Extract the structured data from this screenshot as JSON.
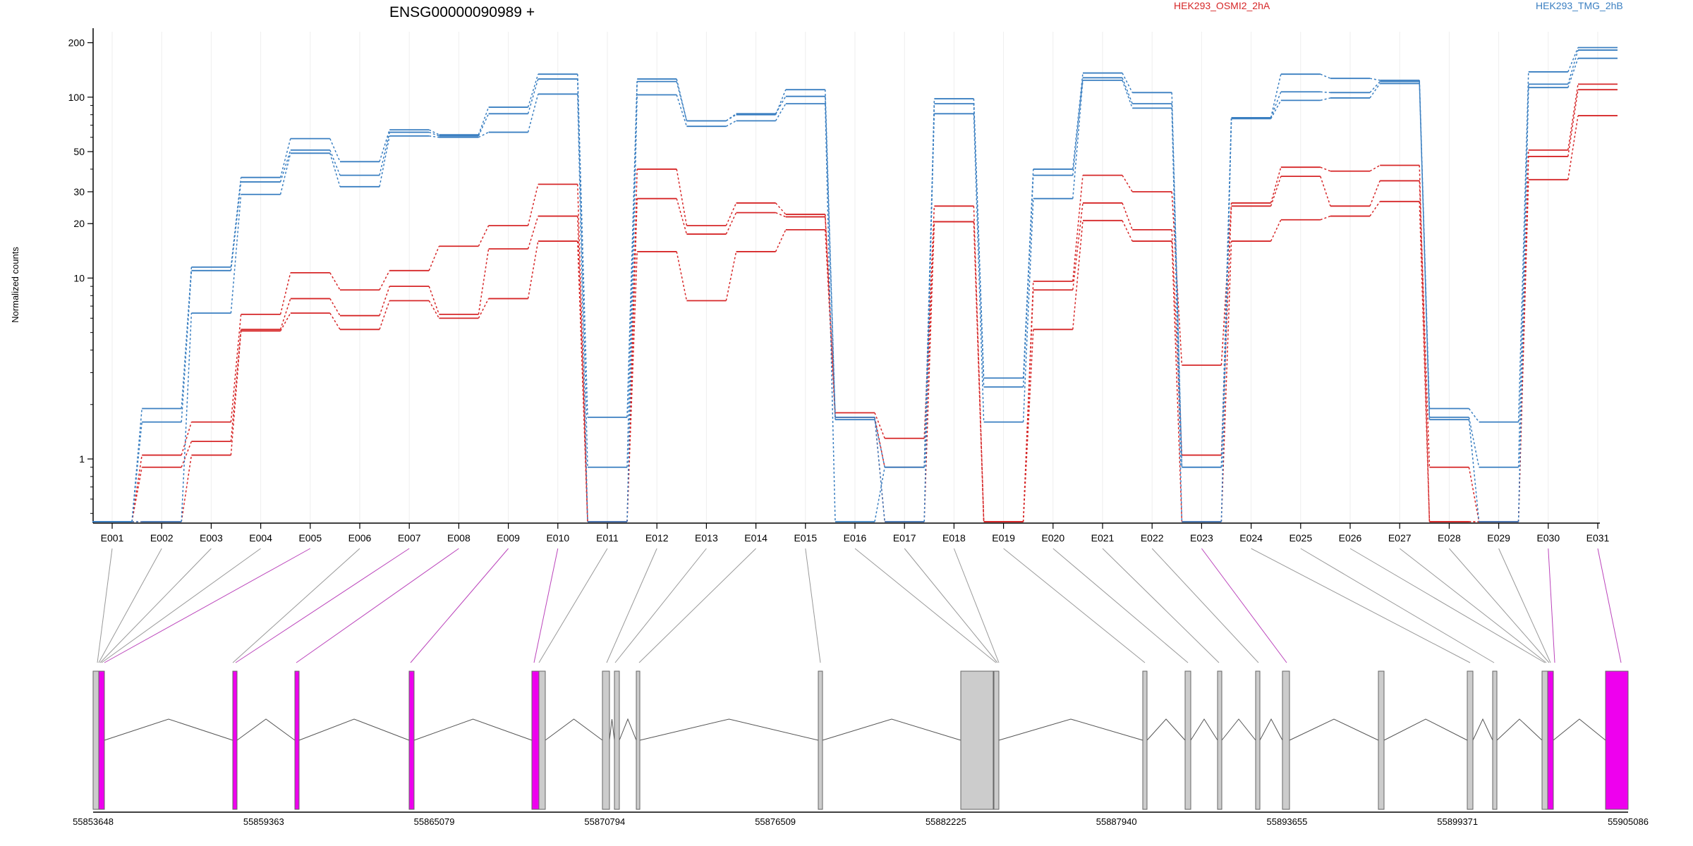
{
  "chart_data": {
    "type": "line",
    "title": "ENSG00000090989 +",
    "ylabel": "Normalized counts",
    "y_scale": "log",
    "ylim": [
      0.45,
      230
    ],
    "y_ticks": [
      1,
      10,
      20,
      30,
      50,
      100,
      200
    ],
    "y_tick_labels": [
      "1",
      "10",
      "20",
      "30",
      "50",
      "100",
      "200"
    ],
    "categories": [
      "E001",
      "E002",
      "E003",
      "E004",
      "E005",
      "E006",
      "E007",
      "E008",
      "E009",
      "E010",
      "E011",
      "E012",
      "E013",
      "E014",
      "E015",
      "E016",
      "E017",
      "E018",
      "E019",
      "E020",
      "E021",
      "E022",
      "E023",
      "E024",
      "E025",
      "E026",
      "E027",
      "E028",
      "E029",
      "E030",
      "E031"
    ],
    "colors": {
      "HEK293_OSMI2_2hA": "#d62728",
      "HEK293_TMG_2hB": "#3a7fc1",
      "exon_default": "#cccccc",
      "exon_highlight": "#ee00ee",
      "connector_default": "#999999",
      "connector_highlight": "#bb44bb"
    },
    "legend": [
      {
        "name": "HEK293_OSMI2_2hA",
        "color": "#d62728"
      },
      {
        "name": "HEK293_TMG_2hB",
        "color": "#3a7fc1"
      }
    ],
    "series": [
      {
        "group": "HEK293_OSMI2_2hA",
        "values": [
          0.45,
          1.05,
          1.6,
          6.3,
          10.7,
          8.6,
          11,
          15,
          19.5,
          33,
          0.45,
          40,
          19.5,
          26,
          22.5,
          1.8,
          1.3,
          25,
          0.45,
          9.6,
          37,
          30,
          3.3,
          26,
          41,
          39,
          42,
          0.45,
          0.45,
          51,
          118
        ]
      },
      {
        "group": "HEK293_OSMI2_2hA",
        "values": [
          0.45,
          0.9,
          1.25,
          5.2,
          7.7,
          6.2,
          9,
          6.3,
          14.5,
          22,
          0.45,
          27.5,
          17.5,
          23,
          21.8,
          1.7,
          0.9,
          20.5,
          0.45,
          8.6,
          26,
          18.5,
          1.05,
          25,
          36.5,
          25,
          34.5,
          0.9,
          0.45,
          47,
          110
        ]
      },
      {
        "group": "HEK293_OSMI2_2hA",
        "values": [
          0.45,
          0.45,
          1.05,
          5.1,
          6.4,
          5.2,
          7.5,
          6.0,
          7.7,
          16,
          0.45,
          14,
          7.5,
          14,
          18.5,
          1.7,
          0.45,
          20.5,
          0.45,
          5.2,
          20.8,
          16,
          0.45,
          16,
          21,
          22,
          26.5,
          0.45,
          0.45,
          35,
          79
        ]
      },
      {
        "group": "HEK293_TMG_2hB",
        "values": [
          0.45,
          1.9,
          11.5,
          36,
          59,
          44,
          66,
          62,
          88,
          134,
          1.7,
          126,
          74,
          80,
          110,
          1.7,
          0.45,
          98,
          2.8,
          40,
          136,
          106,
          0.9,
          77,
          134,
          127,
          124,
          1.9,
          1.6,
          138,
          188
        ]
      },
      {
        "group": "HEK293_TMG_2hB",
        "values": [
          0.45,
          1.6,
          11,
          34,
          51,
          37,
          64,
          61,
          81,
          126,
          0.9,
          122,
          74,
          81,
          101,
          1.65,
          0.9,
          92,
          2.5,
          37,
          128,
          92,
          0.9,
          77,
          107,
          106,
          122,
          1.7,
          0.9,
          118,
          182
        ]
      },
      {
        "group": "HEK293_TMG_2hB",
        "values": [
          0.45,
          0.45,
          6.4,
          29,
          49,
          32,
          61,
          60,
          64,
          104,
          0.45,
          103,
          69,
          74,
          92,
          0.45,
          0.9,
          81,
          1.6,
          27.5,
          124,
          87,
          0.45,
          76,
          96,
          99,
          119,
          1.65,
          0.45,
          113,
          164
        ]
      }
    ],
    "gene_model": {
      "coordinate_labels": [
        "55853648",
        "55859363",
        "55865079",
        "55870794",
        "55876509",
        "55882225",
        "55887940",
        "55893655",
        "55899371",
        "55905086"
      ]
    }
  }
}
